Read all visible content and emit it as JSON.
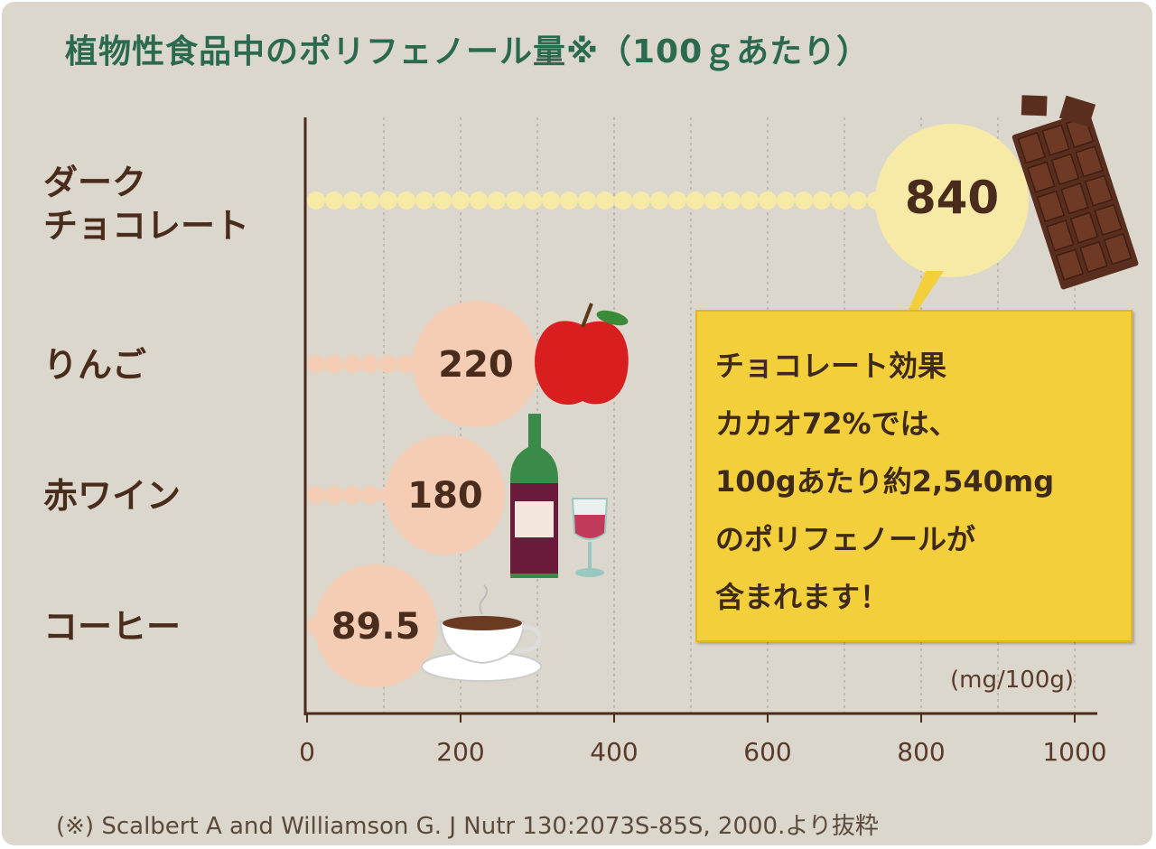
{
  "title": "植物性食品中のポリフェノール量※（100ｇあたり）",
  "chart_data": {
    "type": "bar",
    "title": "植物性食品中のポリフェノール量※（100ｇあたり）",
    "categories": [
      "ダーク\nチョコレート",
      "りんご",
      "赤ワイン",
      "コーヒー"
    ],
    "values": [
      840,
      220,
      180,
      89.5
    ],
    "value_labels": [
      "840",
      "220",
      "180",
      "89.5"
    ],
    "unit": "(mg/100g)",
    "xlim": [
      0,
      1000
    ],
    "xticks": [
      "0",
      "200",
      "400",
      "600",
      "800",
      "1000"
    ],
    "grid": true,
    "colors": {
      "chocolate": "#f7e9a6",
      "others": "#f5cdb4"
    },
    "icons": [
      "chocolate-bar",
      "apple",
      "wine-bottle-and-glass",
      "coffee-cup"
    ]
  },
  "callout": {
    "lines": [
      "チョコレート効果",
      "カカオ72%では、",
      "100gあたり約2,540mg",
      "のポリフェノールが",
      "含まれます！"
    ]
  },
  "footnote": "(※) Scalbert A and Williamson G. J Nutr 130:2073S-85S, 2000.より抜粋"
}
